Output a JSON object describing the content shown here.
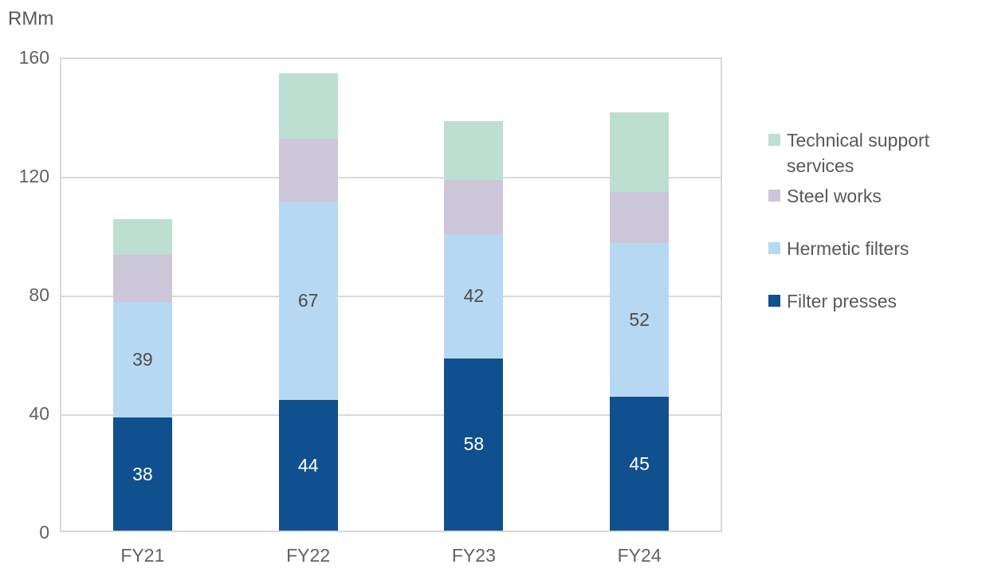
{
  "chart_data": {
    "type": "bar",
    "stacked": true,
    "axis_title": "RMm",
    "categories": [
      "FY21",
      "FY22",
      "FY23",
      "FY24"
    ],
    "series": [
      {
        "name": "Filter presses",
        "color": "#11508e",
        "label_color": "#ffffff",
        "show_labels": true,
        "values": [
          38,
          44,
          58,
          45
        ]
      },
      {
        "name": "Hermetic filters",
        "color": "#b6d8f2",
        "label_color": "#4d4d4d",
        "show_labels": true,
        "values": [
          39,
          67,
          42,
          52
        ]
      },
      {
        "name": "Steel works",
        "color": "#cdc6d9",
        "label_color": "#4d4d4d",
        "show_labels": false,
        "values": [
          16,
          21,
          18,
          17
        ]
      },
      {
        "name": "Technical support services",
        "color": "#bcdfd1",
        "label_color": "#4d4d4d",
        "show_labels": false,
        "values": [
          12,
          22,
          20,
          27
        ]
      }
    ],
    "ylim": [
      0,
      160
    ],
    "yticks": [
      0,
      40,
      80,
      120,
      160
    ],
    "grid": true,
    "gridline_color": "#d9d9d9",
    "text_color": "#595959",
    "legend_position": "right",
    "legend_entries": [
      "Technical support services",
      "Steel works",
      "Hermetic filters",
      "Filter presses"
    ]
  }
}
